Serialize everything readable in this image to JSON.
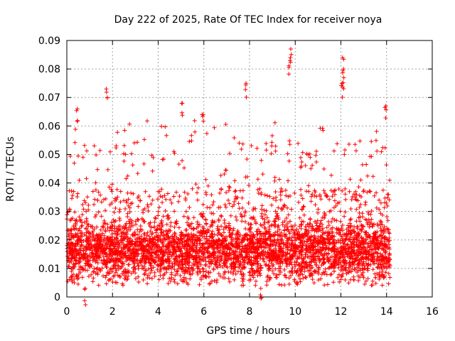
{
  "chart_data": {
    "type": "scatter",
    "title": "Day 222 of 2025, Rate Of TEC Index for receiver noya",
    "xlabel": "GPS time / hours",
    "ylabel": "ROTI / TECUs",
    "xlim": [
      0,
      16
    ],
    "ylim": [
      0,
      0.09
    ],
    "xticks": [
      0,
      2,
      4,
      6,
      8,
      10,
      12,
      14,
      16
    ],
    "xtick_labels": [
      "0",
      "2",
      "4",
      "6",
      "8",
      "10",
      "12",
      "14",
      "16"
    ],
    "yticks": [
      0,
      0.01,
      0.02,
      0.03,
      0.04,
      0.05,
      0.06,
      0.07,
      0.08,
      0.09
    ],
    "ytick_labels": [
      "0",
      "0.01",
      "0.02",
      "0.03",
      "0.04",
      "0.05",
      "0.06",
      "0.07",
      "0.08",
      "0.09"
    ],
    "grid": true,
    "marker": "plus",
    "color": "#ff0000",
    "x_range_of_data": [
      0.0,
      14.15
    ],
    "typical_band": [
      0.008,
      0.03
    ],
    "notable_points": [
      {
        "x": 0.45,
        "y": 0.066
      },
      {
        "x": 1.75,
        "y": 0.073
      },
      {
        "x": 5.05,
        "y": 0.068
      },
      {
        "x": 5.95,
        "y": 0.064
      },
      {
        "x": 7.85,
        "y": 0.075
      },
      {
        "x": 9.8,
        "y": 0.087
      },
      {
        "x": 9.75,
        "y": 0.083
      },
      {
        "x": 12.1,
        "y": 0.084
      },
      {
        "x": 12.1,
        "y": 0.08
      },
      {
        "x": 12.05,
        "y": 0.075
      },
      {
        "x": 13.95,
        "y": 0.067
      },
      {
        "x": 8.5,
        "y": 0.003
      },
      {
        "x": 0.8,
        "y": 0.003
      }
    ],
    "seed": 222,
    "n_points": 4200
  }
}
